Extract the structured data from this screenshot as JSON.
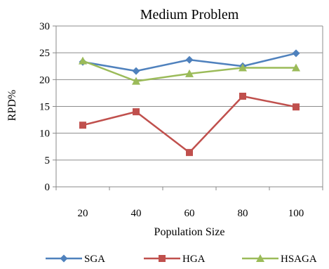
{
  "chart_data": {
    "type": "line",
    "title": "Medium Problem",
    "xlabel": "Population Size",
    "ylabel": "RPD%",
    "categories": [
      "20",
      "40",
      "60",
      "80",
      "100"
    ],
    "ylim": [
      0,
      30
    ],
    "yticks": [
      "0",
      "5",
      "10",
      "15",
      "20",
      "25",
      "30"
    ],
    "grid": "horizontal",
    "legend": "bottom",
    "series": [
      {
        "name": "SGA",
        "values": [
          23.3,
          21.6,
          23.7,
          22.5,
          24.9
        ],
        "color": "#4F81BD",
        "marker": "diamond"
      },
      {
        "name": "HGA",
        "values": [
          11.5,
          14.0,
          6.4,
          16.9,
          14.9
        ],
        "color": "#C0504D",
        "marker": "square"
      },
      {
        "name": "HSAGA",
        "values": [
          23.5,
          19.7,
          21.1,
          22.2,
          22.2
        ],
        "color": "#9BBB59",
        "marker": "triangle"
      }
    ]
  }
}
